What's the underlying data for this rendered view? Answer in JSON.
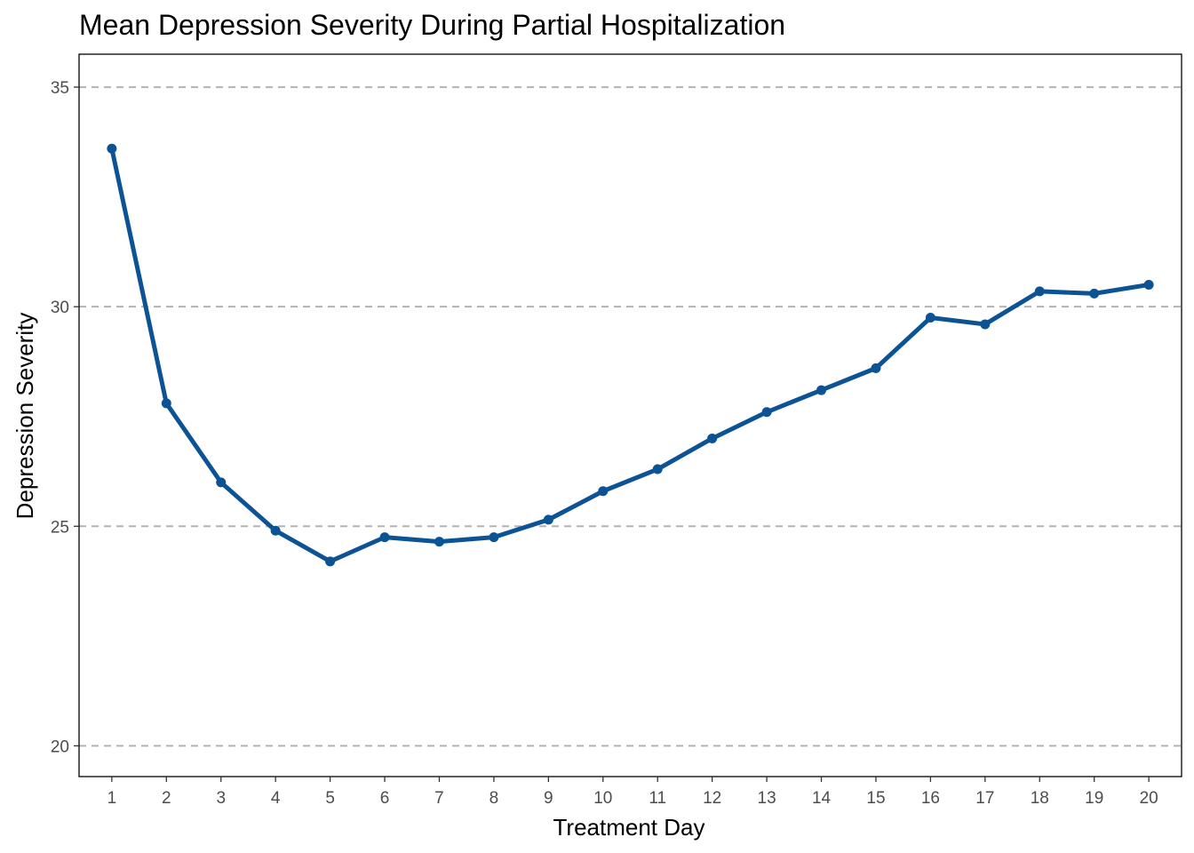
{
  "chart_data": {
    "type": "line",
    "title": "Mean Depression Severity During Partial Hospitalization",
    "xlabel": "Treatment Day",
    "ylabel": "Depression Severity",
    "x": [
      1,
      2,
      3,
      4,
      5,
      6,
      7,
      8,
      9,
      10,
      11,
      12,
      13,
      14,
      15,
      16,
      17,
      18,
      19,
      20
    ],
    "x_tick_labels": [
      "1",
      "2",
      "3",
      "4",
      "5",
      "6",
      "7",
      "8",
      "9",
      "10",
      "11",
      "12",
      "13",
      "14",
      "15",
      "16",
      "17",
      "18",
      "19",
      "20"
    ],
    "y_ticks": [
      20,
      25,
      30,
      35
    ],
    "y_tick_labels": [
      "20",
      "25",
      "30",
      "35"
    ],
    "xlim": [
      0.4,
      20.6
    ],
    "ylim": [
      19.3,
      35.75
    ],
    "grid": "horizontal dashed at major y ticks",
    "legend": "none",
    "colors": {
      "line": "#0b5394",
      "grid": "#b3b3b3",
      "panel_border": "#000000"
    },
    "series": [
      {
        "values": [
          33.6,
          27.8,
          26.0,
          24.9,
          24.2,
          24.75,
          24.65,
          24.75,
          25.15,
          25.8,
          26.3,
          27.0,
          27.6,
          28.1,
          28.6,
          29.75,
          29.6,
          30.35,
          30.3,
          30.5
        ]
      }
    ]
  }
}
